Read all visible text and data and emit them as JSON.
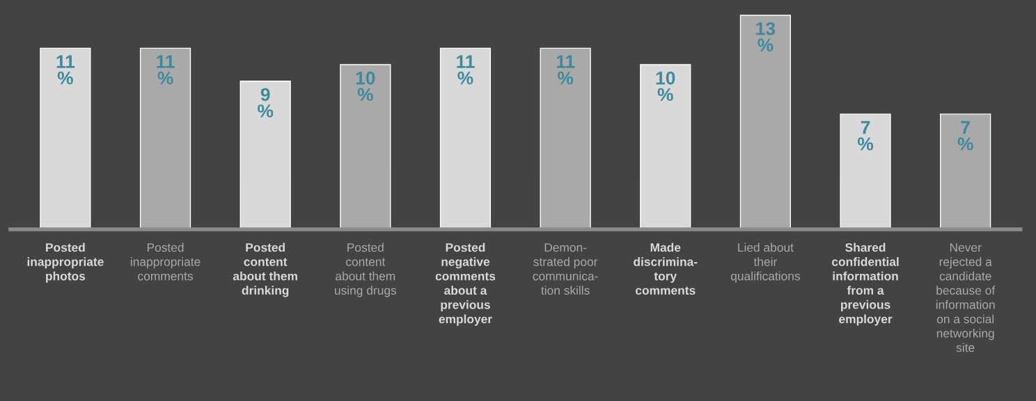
{
  "chart_data": {
    "type": "bar",
    "categories": [
      "Posted\ninappropriate\nphotos",
      "Posted\ninappropriate\ncomments",
      "Posted\ncontent\nabout them\ndrinking",
      "Posted\ncontent\nabout them\nusing drugs",
      "Posted\nnegative\ncomments\nabout a\nprevious\nemployer",
      "Demon-\nstrated poor\ncommunica-\ntion skills",
      "Made\ndiscrimina-\ntory\ncomments",
      "Lied about\ntheir\nqualifications",
      "Shared\nconfidential\ninformation\nfrom a\nprevious\nemployer",
      "Never\nrejected a\ncandidate\nbecause of\ninformation\non a social\nnetworking\nsite"
    ],
    "values": [
      11,
      11,
      9,
      10,
      11,
      11,
      10,
      13,
      7,
      7
    ],
    "colors": [
      "#d9d9d9",
      "#a9a9a9",
      "#d9d9d9",
      "#a9a9a9",
      "#d9d9d9",
      "#a9a9a9",
      "#d9d9d9",
      "#a9a9a9",
      "#d9d9d9",
      "#a9a9a9"
    ],
    "value_labels": [
      "11\n%",
      "11\n%",
      "9\n%",
      "10\n%",
      "11\n%",
      "11\n%",
      "10\n%",
      "13\n%",
      "7\n%",
      "7\n%"
    ],
    "grid": false,
    "legend": false
  }
}
